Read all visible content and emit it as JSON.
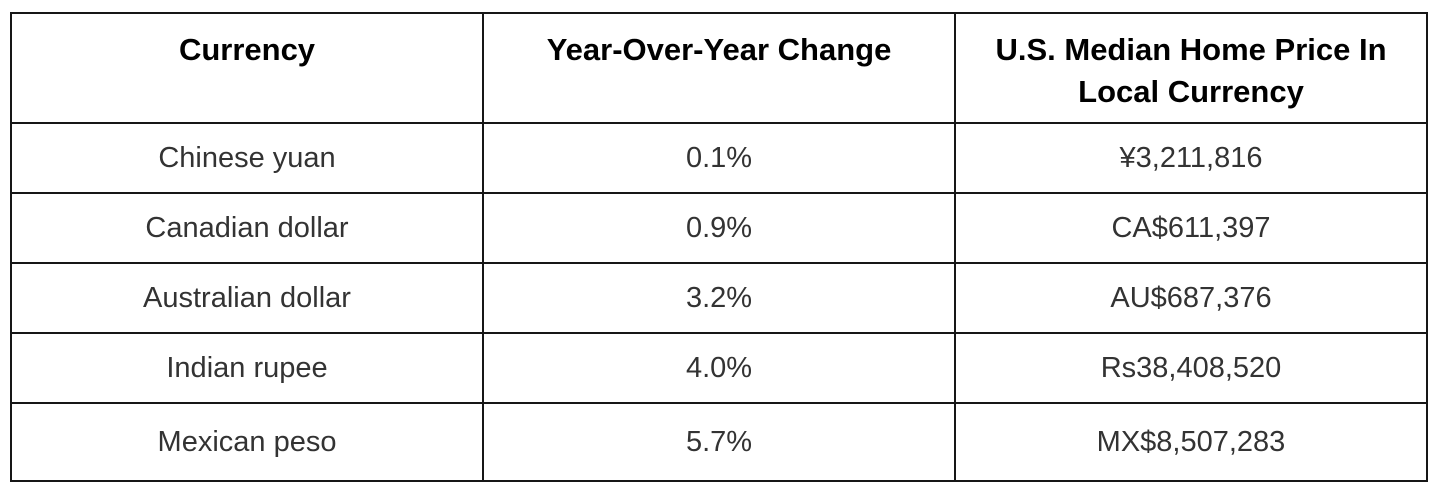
{
  "chart_data": {
    "type": "table",
    "title": "",
    "columns": [
      "Currency",
      "Year-Over-Year Change",
      "U.S. Median Home Price In Local Currency"
    ],
    "rows": [
      [
        "Chinese yuan",
        "0.1%",
        "¥3,211,816"
      ],
      [
        "Canadian dollar",
        "0.9%",
        "CA$611,397"
      ],
      [
        "Australian dollar",
        "3.2%",
        "AU$687,376"
      ],
      [
        "Indian rupee",
        "4.0%",
        "Rs38,408,520"
      ],
      [
        "Mexican peso",
        "5.7%",
        "MX$8,507,283"
      ]
    ],
    "layout_hints": {
      "header_bold": true,
      "text_align": "center",
      "grid": "on"
    }
  },
  "table": {
    "columns": [
      {
        "label": "Currency"
      },
      {
        "label": "Year-Over-Year Change"
      },
      {
        "label": "U.S. Median Home Price In Local Currency"
      }
    ],
    "rows": [
      {
        "currency": "Chinese yuan",
        "yoy_change": "0.1%",
        "price_local": "¥3,211,816"
      },
      {
        "currency": "Canadian dollar",
        "yoy_change": "0.9%",
        "price_local": "CA$611,397"
      },
      {
        "currency": "Australian dollar",
        "yoy_change": "3.2%",
        "price_local": "AU$687,376"
      },
      {
        "currency": "Indian rupee",
        "yoy_change": "4.0%",
        "price_local": "Rs38,408,520"
      },
      {
        "currency": "Mexican peso",
        "yoy_change": "5.7%",
        "price_local": "MX$8,507,283"
      }
    ],
    "colors": {
      "border": "#161616",
      "header_text": "#000000",
      "body_text": "#333333",
      "background": "#ffffff"
    }
  }
}
